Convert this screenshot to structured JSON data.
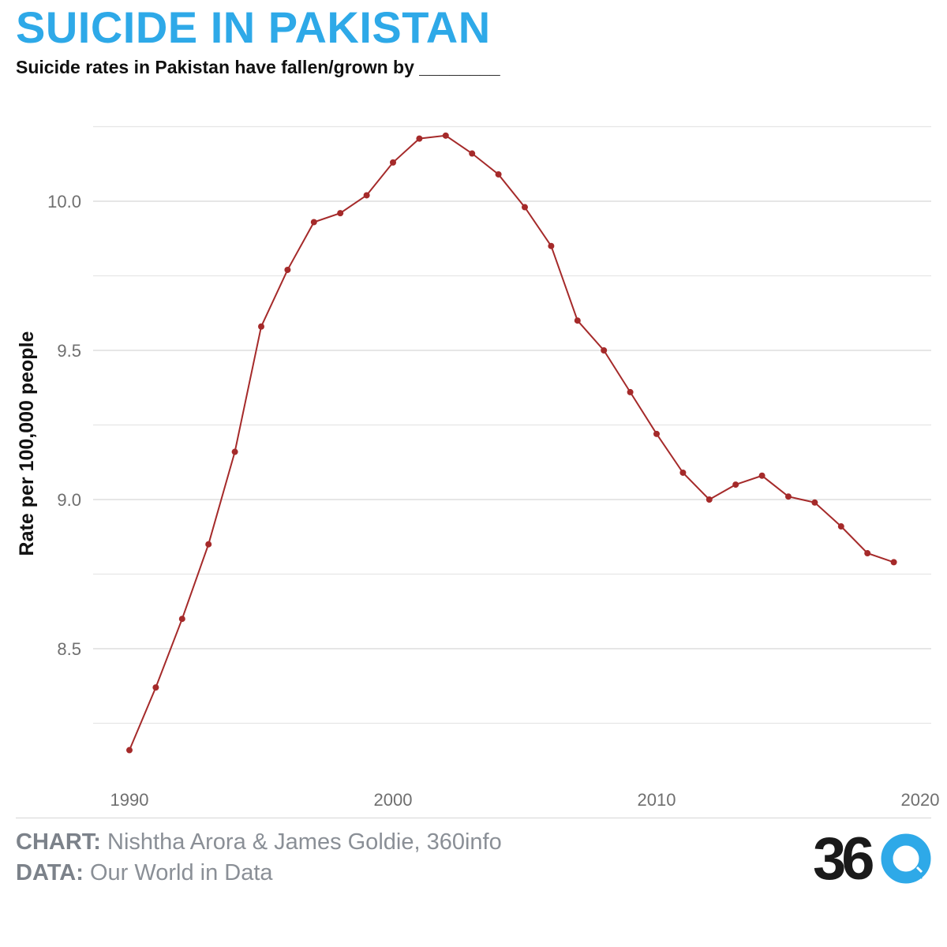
{
  "header": {
    "title": "SUICIDE IN PAKISTAN",
    "subtitle": "Suicide rates in Pakistan have fallen/grown by ________"
  },
  "footer": {
    "chart_label": "CHART:",
    "chart_credit": "Nishtha Arora & James Goldie, 360info",
    "data_label": "DATA:",
    "data_credit": "Our World in Data",
    "logo_text": "360"
  },
  "colors": {
    "title": "#2ea9e8",
    "line": "#a52a2a",
    "grid": "#e6e6e6",
    "logo_dark": "#1a1a1a",
    "logo_blue": "#2ea9e8"
  },
  "chart_data": {
    "type": "line",
    "ylabel": "Rate per 100,000 people",
    "xlabel": "",
    "xlim": [
      1990,
      2020
    ],
    "ylim": [
      8.25,
      10.25
    ],
    "xticks": [
      1990,
      2000,
      2010,
      2020
    ],
    "yticks": [
      8.5,
      9.0,
      9.5,
      10.0
    ],
    "ytick_labels": [
      "8.5",
      "9.0",
      "9.5",
      "10.0"
    ],
    "grid": true,
    "series": [
      {
        "x": [
          1990,
          1991,
          1992,
          1993,
          1994,
          1995,
          1996,
          1997,
          1998,
          1999,
          2000,
          2001,
          2002,
          2003,
          2004,
          2005,
          2006,
          2007,
          2008,
          2009,
          2010,
          2011,
          2012,
          2013,
          2014,
          2015,
          2016,
          2017,
          2018,
          2019
        ],
        "values": [
          8.16,
          8.37,
          8.6,
          8.85,
          9.16,
          9.58,
          9.77,
          9.93,
          9.96,
          10.02,
          10.13,
          10.21,
          10.22,
          10.16,
          10.09,
          9.98,
          9.85,
          9.6,
          9.5,
          9.36,
          9.22,
          9.09,
          9.0,
          9.05,
          9.08,
          9.01,
          8.99,
          8.91,
          8.82,
          8.79
        ]
      }
    ]
  }
}
